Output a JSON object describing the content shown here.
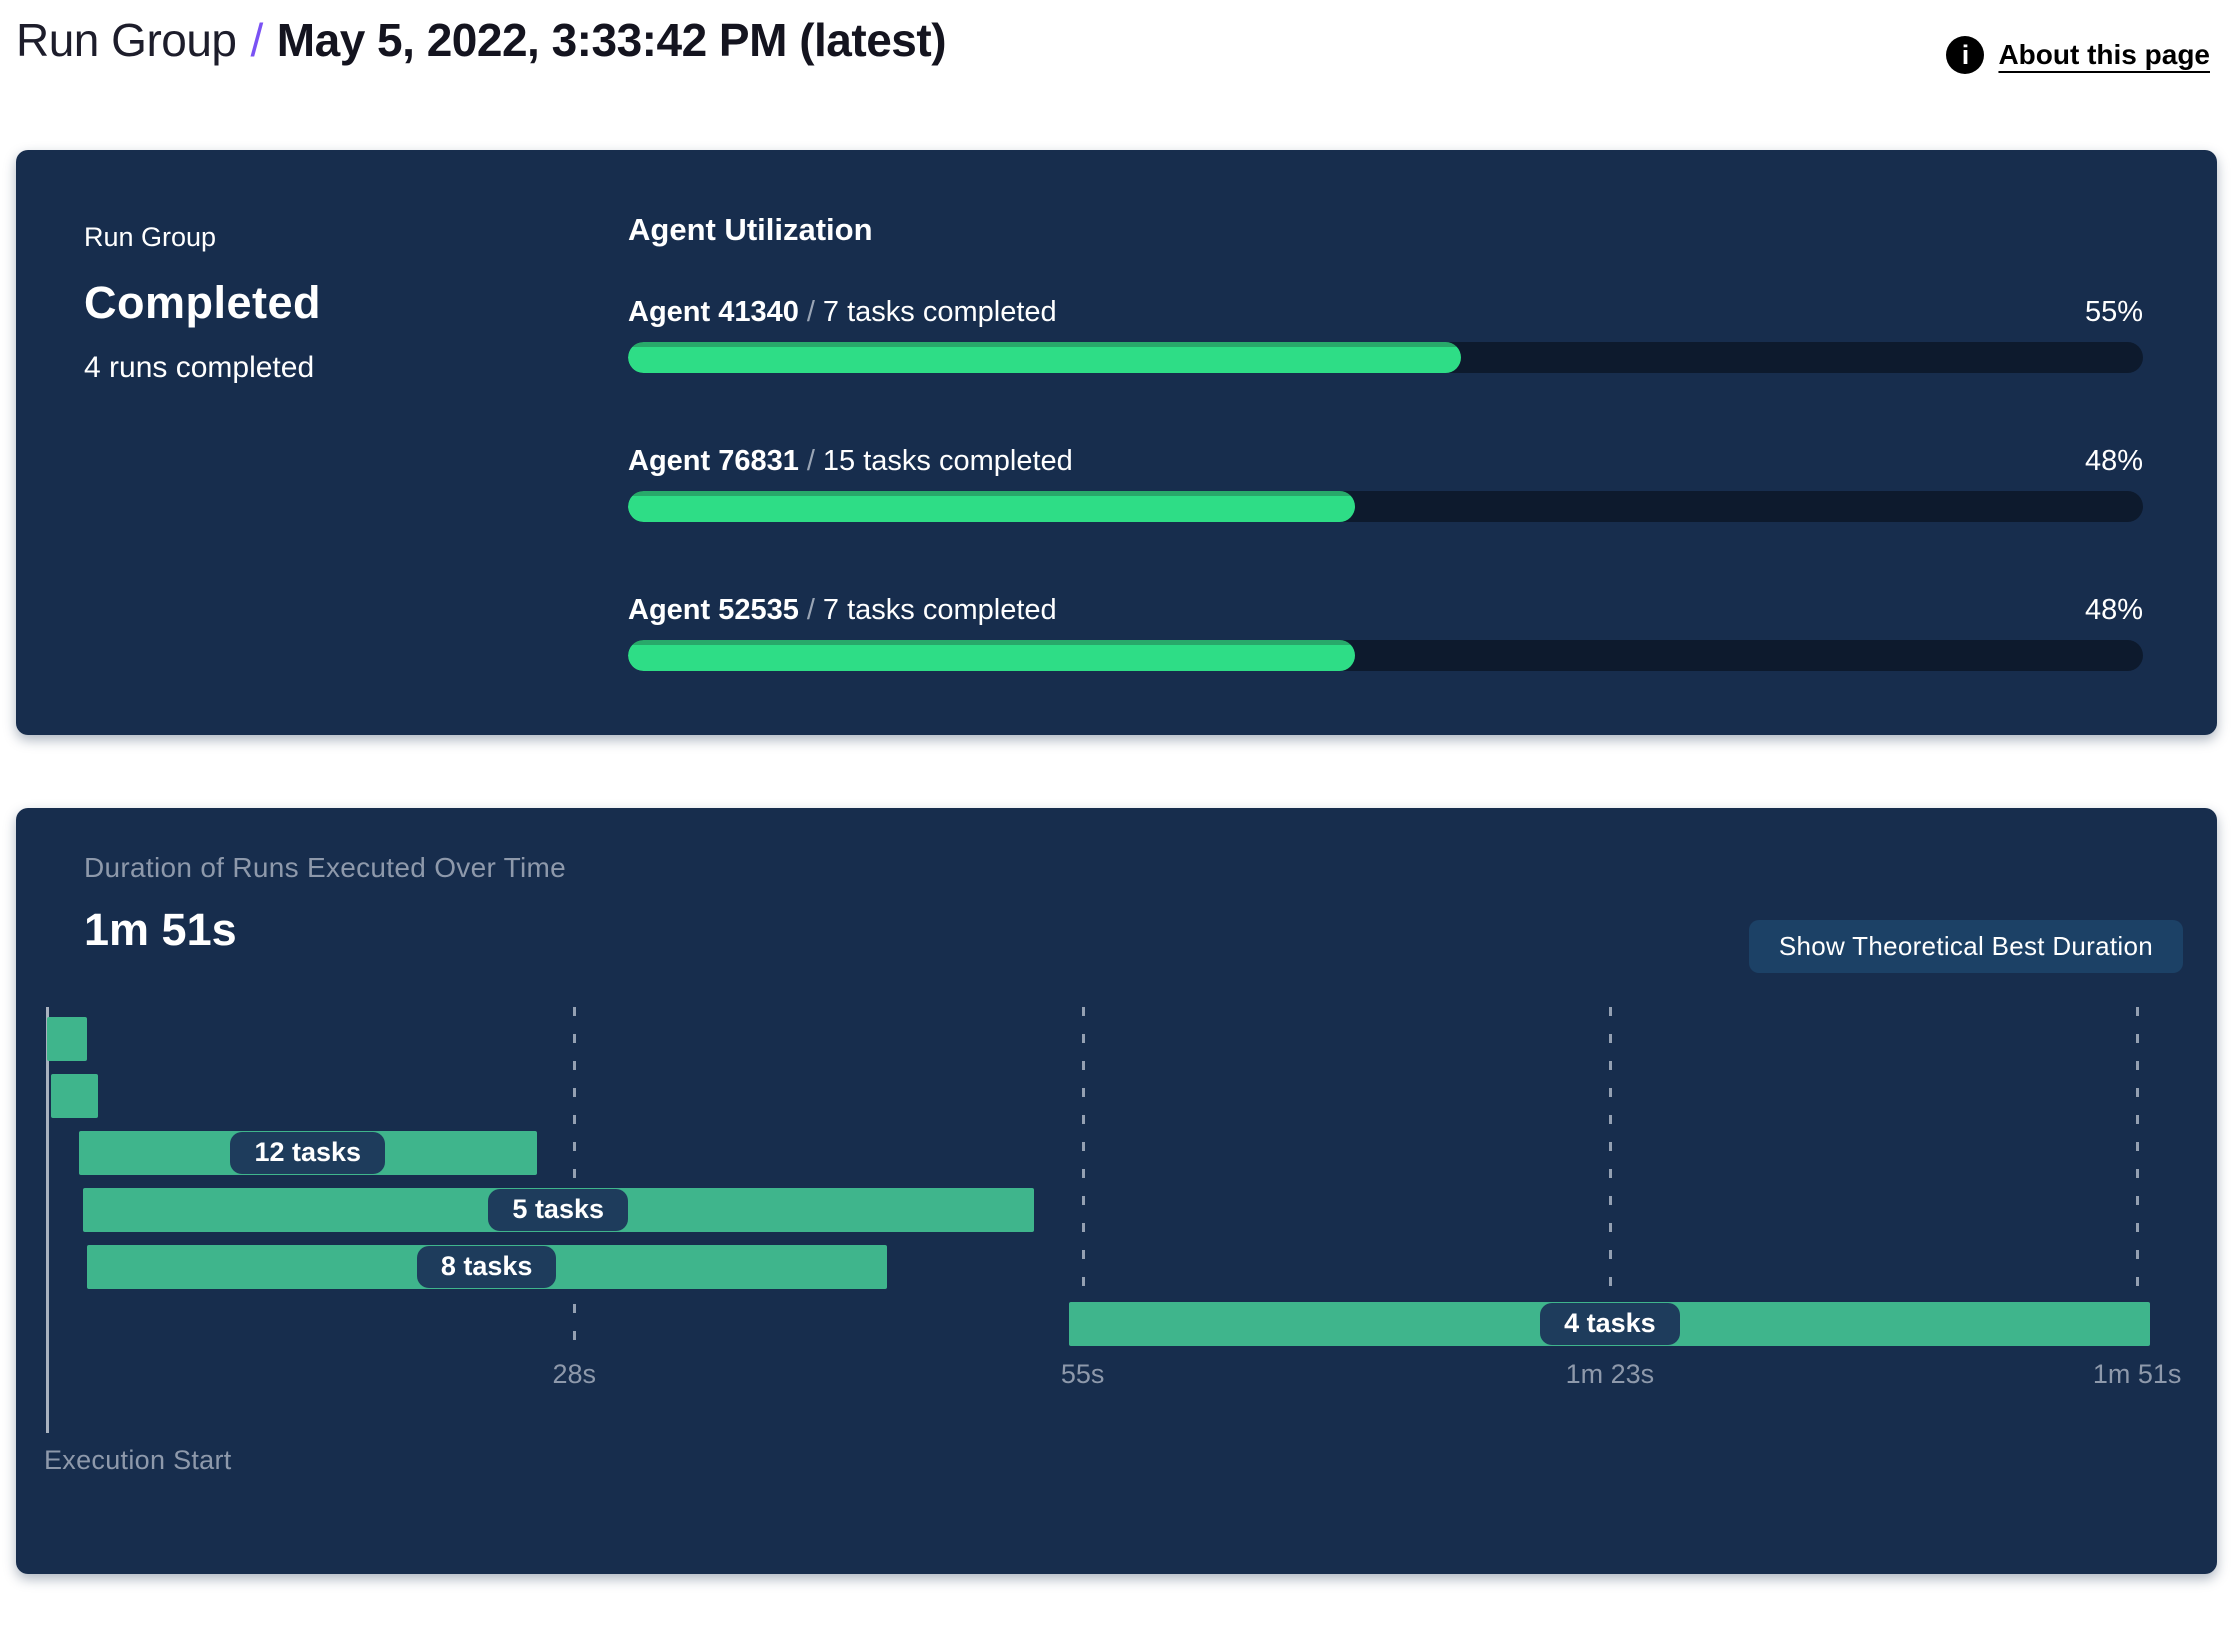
{
  "header": {
    "breadcrumb_root": "Run Group",
    "separator": "/",
    "title": "May 5, 2022, 3:33:42 PM (latest)",
    "about_link": "About this page",
    "info_icon_glyph": "i"
  },
  "summary_panel": {
    "label": "Run Group",
    "status": "Completed",
    "runs_completed": "4 runs completed",
    "section_title": "Agent Utilization",
    "agent_separator": "/",
    "agents": [
      {
        "name": "Agent 41340",
        "tasks": "7 tasks completed",
        "percent": "55%",
        "value": 55
      },
      {
        "name": "Agent 76831",
        "tasks": "15 tasks completed",
        "percent": "48%",
        "value": 48
      },
      {
        "name": "Agent 52535",
        "tasks": "7 tasks completed",
        "percent": "48%",
        "value": 48
      }
    ]
  },
  "duration_panel": {
    "title": "Duration of Runs Executed Over Time",
    "total_duration": "1m 51s",
    "button_label": "Show Theoretical Best Duration",
    "axis_label": "Execution Start"
  },
  "chart_data": {
    "type": "bar",
    "subtype": "gantt-timeline",
    "title": "Duration of Runs Executed Over Time",
    "total_duration_label": "1m 51s",
    "x_unit": "seconds",
    "x_range": [
      0,
      111.7
    ],
    "grid": "dashed-vertical",
    "ticks": [
      {
        "t": 28,
        "label": "28s"
      },
      {
        "t": 55,
        "label": "55s"
      },
      {
        "t": 83,
        "label": "1m 23s"
      },
      {
        "t": 111,
        "label": "1m 51s"
      }
    ],
    "bars": [
      {
        "start": 0,
        "end": 2.1,
        "label": ""
      },
      {
        "start": 0.2,
        "end": 2.7,
        "label": ""
      },
      {
        "start": 1.7,
        "end": 26.0,
        "label": "12 tasks"
      },
      {
        "start": 1.9,
        "end": 52.4,
        "label": "5 tasks"
      },
      {
        "start": 2.1,
        "end": 44.6,
        "label": "8 tasks"
      },
      {
        "start": 54.3,
        "end": 111.7,
        "label": "4 tasks"
      }
    ],
    "xlabel": "Execution Start"
  },
  "colors": {
    "panel_bg": "#172d4d",
    "accent_slash": "#7a52f4",
    "progress_fill": "#2edd86",
    "progress_fill_edge": "#28a96a",
    "progress_track": "#0d1a2d",
    "gantt_bar": "#3fb58c",
    "badge_bg": "#1e3c5c",
    "muted_text": "#8e99ab",
    "button_bg": "#1c4166"
  }
}
